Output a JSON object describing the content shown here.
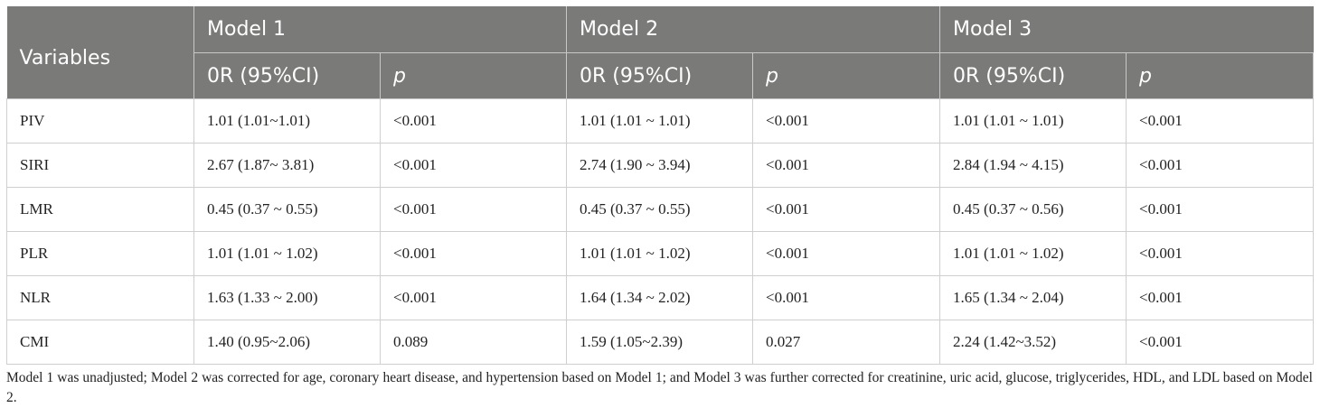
{
  "table": {
    "header": {
      "variables": "Variables",
      "models": [
        "Model 1",
        "Model 2",
        "Model 3"
      ],
      "or_label": "0R (95%CI)",
      "p_label": "p"
    },
    "rows": [
      {
        "variable": "PIV",
        "m1_or": "1.01 (1.01~1.01)",
        "m1_p": "<0.001",
        "m2_or": "1.01 (1.01 ~ 1.01)",
        "m2_p": "<0.001",
        "m3_or": "1.01 (1.01 ~ 1.01)",
        "m3_p": "<0.001"
      },
      {
        "variable": "SIRI",
        "m1_or": "2.67 (1.87~ 3.81)",
        "m1_p": "<0.001",
        "m2_or": "2.74 (1.90 ~ 3.94)",
        "m2_p": "<0.001",
        "m3_or": "2.84 (1.94 ~ 4.15)",
        "m3_p": "<0.001"
      },
      {
        "variable": "LMR",
        "m1_or": "0.45 (0.37 ~ 0.55)",
        "m1_p": "<0.001",
        "m2_or": "0.45 (0.37 ~ 0.55)",
        "m2_p": "<0.001",
        "m3_or": "0.45 (0.37 ~ 0.56)",
        "m3_p": "<0.001"
      },
      {
        "variable": "PLR",
        "m1_or": "1.01 (1.01 ~ 1.02)",
        "m1_p": "<0.001",
        "m2_or": "1.01 (1.01 ~ 1.02)",
        "m2_p": "<0.001",
        "m3_or": "1.01 (1.01 ~ 1.02)",
        "m3_p": "<0.001"
      },
      {
        "variable": "NLR",
        "m1_or": "1.63 (1.33 ~ 2.00)",
        "m1_p": "<0.001",
        "m2_or": "1.64 (1.34 ~ 2.02)",
        "m2_p": "<0.001",
        "m3_or": "1.65 (1.34 ~ 2.04)",
        "m3_p": "<0.001"
      },
      {
        "variable": "CMI",
        "m1_or": "1.40 (0.95~2.06)",
        "m1_p": "0.089",
        "m2_or": "1.59 (1.05~2.39)",
        "m2_p": "0.027",
        "m3_or": "2.24 (1.42~3.52)",
        "m3_p": "<0.001"
      }
    ]
  },
  "footnote": "Model 1 was unadjusted; Model 2 was corrected for age, coronary heart disease, and hypertension based on Model 1; and Model 3 was further corrected for creatinine, uric acid, glucose, triglycerides, HDL, and LDL based on Model 2."
}
